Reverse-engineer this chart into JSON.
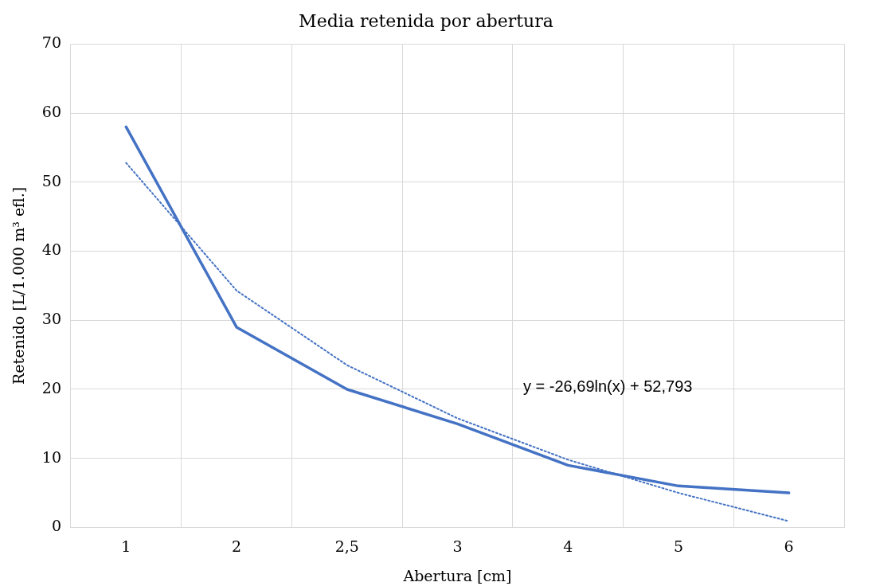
{
  "chart_data": {
    "type": "line",
    "title": "Media retenida por abertura",
    "xlabel": "Abertura [cm]",
    "ylabel": "Retenido [L/1.000 m³ efl.]",
    "categories": [
      "1",
      "2",
      "2,5",
      "3",
      "4",
      "5",
      "6"
    ],
    "series": [
      {
        "color": "#4472c4",
        "values": [
          58,
          29,
          20,
          15,
          9,
          6,
          5
        ],
        "line_style": "solid"
      },
      {
        "color": "#4472c4",
        "values": [
          52.8,
          34.3,
          23.5,
          15.8,
          9.8,
          5.0,
          0.9
        ],
        "line_style": "dotted"
      }
    ],
    "ylim": [
      0,
      70
    ],
    "yticks": [
      0,
      10,
      20,
      30,
      40,
      50,
      60,
      70
    ],
    "grid": true,
    "legend": false,
    "marker": "none",
    "annotations": [
      "y = -26,69ln(x) + 52,793"
    ]
  }
}
